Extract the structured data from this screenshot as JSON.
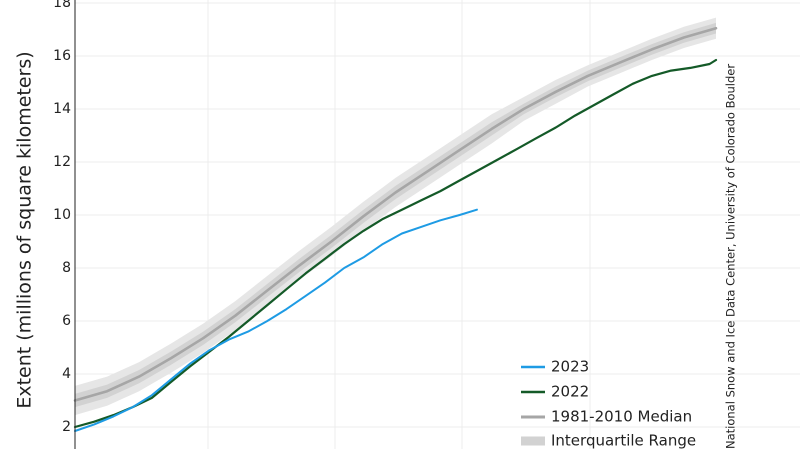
{
  "chart_data": {
    "type": "line",
    "ylabel": "Extent (millions of square kilometers)",
    "ylim": [
      2,
      18
    ],
    "y_ticks": [
      "2",
      "4",
      "6",
      "8",
      "10",
      "12",
      "14",
      "16",
      "18"
    ],
    "xlim": [
      0,
      100
    ],
    "grid": true,
    "legend_placement": "bottom-right",
    "credit": "National Snow and Ice Data Center, University of Colorado Boulder",
    "colors": {
      "series_2023": "#1e9be4",
      "series_2022": "#145a28",
      "median": "#a6a6a6",
      "interquartile": "#d2d2d2",
      "interdecile": "#e6e6e6"
    },
    "legend": [
      {
        "label": "2023",
        "key": "series_2023"
      },
      {
        "label": "2022",
        "key": "series_2022"
      },
      {
        "label": "1981-2010 Median",
        "key": "median"
      },
      {
        "label": "Interquartile Range",
        "key": "interquartile"
      }
    ],
    "series": [
      {
        "name": "2023",
        "key": "series_2023",
        "x": [
          0,
          3,
          6,
          9,
          12,
          15,
          18,
          21,
          24,
          27,
          30,
          33,
          36,
          39,
          42,
          45,
          48,
          51,
          54,
          57,
          60,
          62.7
        ],
        "y": [
          1.85,
          2.1,
          2.4,
          2.75,
          3.2,
          3.8,
          4.4,
          4.9,
          5.3,
          5.6,
          6.0,
          6.45,
          6.95,
          7.45,
          8.0,
          8.4,
          8.9,
          9.3,
          9.55,
          9.8,
          10.0,
          10.2
        ]
      },
      {
        "name": "2022",
        "key": "series_2022",
        "x": [
          0,
          3,
          6,
          9,
          12,
          15,
          18,
          21,
          24,
          27,
          30,
          33,
          36,
          39,
          42,
          45,
          48,
          51,
          54,
          57,
          60,
          63,
          66,
          69,
          72,
          75,
          78,
          81,
          84,
          87,
          90,
          93,
          96,
          99,
          100
        ],
        "y": [
          2.0,
          2.2,
          2.45,
          2.75,
          3.1,
          3.7,
          4.3,
          4.85,
          5.4,
          6.0,
          6.6,
          7.2,
          7.8,
          8.35,
          8.9,
          9.4,
          9.85,
          10.2,
          10.55,
          10.9,
          11.3,
          11.7,
          12.1,
          12.5,
          12.9,
          13.3,
          13.75,
          14.15,
          14.55,
          14.95,
          15.25,
          15.45,
          15.55,
          15.7,
          15.85
        ]
      },
      {
        "name": "1981-2010 Median",
        "key": "median",
        "x": [
          0,
          5,
          10,
          15,
          20,
          25,
          30,
          35,
          40,
          45,
          50,
          55,
          60,
          65,
          70,
          75,
          80,
          85,
          90,
          95,
          100
        ],
        "y": [
          3.0,
          3.35,
          3.9,
          4.6,
          5.35,
          6.2,
          7.15,
          8.1,
          9.0,
          9.95,
          10.85,
          11.65,
          12.45,
          13.25,
          14.0,
          14.65,
          15.25,
          15.75,
          16.25,
          16.7,
          17.05
        ]
      }
    ],
    "bands": [
      {
        "name": "Interquartile Range",
        "key": "interquartile",
        "x": [
          0,
          5,
          10,
          15,
          20,
          25,
          30,
          35,
          40,
          45,
          50,
          55,
          60,
          65,
          70,
          75,
          80,
          85,
          90,
          95,
          100
        ],
        "upper": [
          3.25,
          3.6,
          4.15,
          4.85,
          5.6,
          6.45,
          7.4,
          8.35,
          9.25,
          10.2,
          11.1,
          11.9,
          12.7,
          13.5,
          14.2,
          14.85,
          15.45,
          15.95,
          16.45,
          16.9,
          17.25
        ],
        "lower": [
          2.75,
          3.1,
          3.65,
          4.35,
          5.1,
          5.95,
          6.9,
          7.85,
          8.75,
          9.7,
          10.6,
          11.4,
          12.2,
          13.0,
          13.8,
          14.45,
          15.05,
          15.55,
          16.05,
          16.5,
          16.85
        ]
      },
      {
        "name": "Interdecile Range",
        "key": "interdecile",
        "x": [
          0,
          5,
          10,
          15,
          20,
          25,
          30,
          35,
          40,
          45,
          50,
          55,
          60,
          65,
          70,
          75,
          80,
          85,
          90,
          95,
          100
        ],
        "upper": [
          3.55,
          3.9,
          4.45,
          5.15,
          5.9,
          6.75,
          7.7,
          8.65,
          9.55,
          10.5,
          11.4,
          12.2,
          13.0,
          13.8,
          14.45,
          15.1,
          15.65,
          16.15,
          16.65,
          17.1,
          17.45
        ],
        "lower": [
          2.45,
          2.8,
          3.35,
          4.05,
          4.8,
          5.65,
          6.6,
          7.55,
          8.45,
          9.4,
          10.3,
          11.1,
          11.9,
          12.7,
          13.55,
          14.2,
          14.85,
          15.35,
          15.85,
          16.3,
          16.65
        ]
      }
    ]
  }
}
